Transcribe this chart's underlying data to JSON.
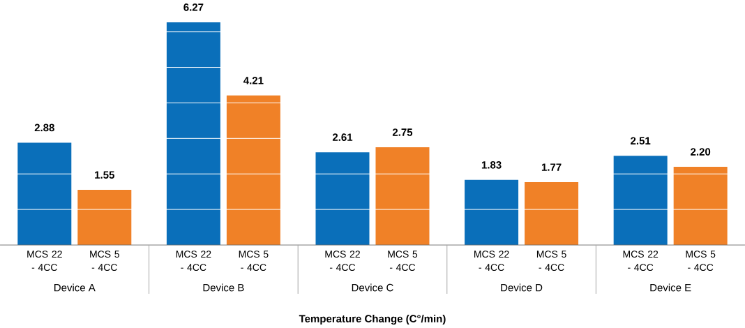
{
  "chart_data": {
    "type": "bar",
    "xlabel": "Temperature Change (C°/min)",
    "categories": [
      "Device A",
      "Device B",
      "Device C",
      "Device D",
      "Device E"
    ],
    "series": [
      {
        "name": "MCS 22 - 4CC",
        "color": "#0a6fba",
        "values": [
          2.88,
          6.27,
          2.61,
          1.83,
          2.51
        ],
        "value_labels": [
          "2.88",
          "6.27",
          "2.61",
          "1.83",
          "2.51"
        ]
      },
      {
        "name": "MCS 5 - 4CC",
        "color": "#f08127",
        "values": [
          1.55,
          4.21,
          2.75,
          1.77,
          2.2
        ],
        "value_labels": [
          "1.55",
          "4.21",
          "2.75",
          "1.77",
          "2.20"
        ]
      }
    ],
    "yticks": [
      {
        "value": 1,
        "label": null
      },
      {
        "value": 2,
        "label": null
      },
      {
        "value": 3,
        "label": null
      },
      {
        "value": 4,
        "label": null
      },
      {
        "value": 5,
        "label": null
      },
      {
        "value": 6,
        "label": null
      }
    ],
    "grid": "y"
  }
}
